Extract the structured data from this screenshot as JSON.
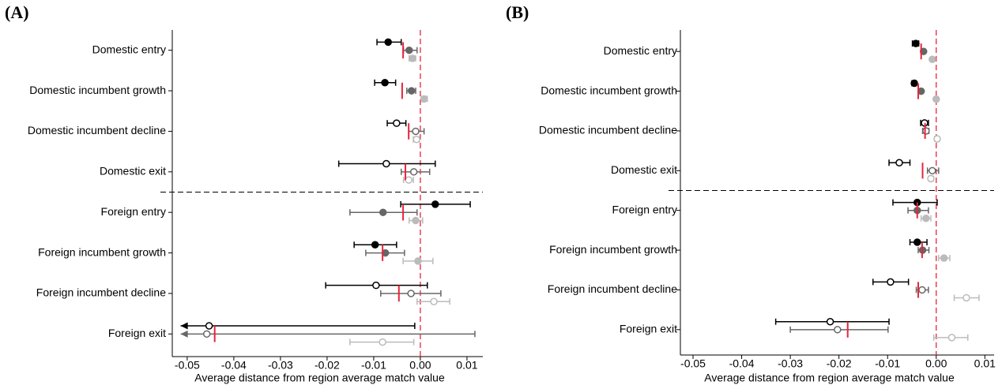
{
  "chart_data": [
    {
      "type": "dot",
      "panel_label": "(A)",
      "categories": [
        "Domestic entry",
        "Domestic incumbent growth",
        "Domestic incumbent decline",
        "Domestic exit",
        "Foreign entry",
        "Foreign incumbent growth",
        "Foreign incumbent decline",
        "Foreign exit"
      ],
      "xlabel": "Average distance from region average match value",
      "xlim": [
        -0.0532,
        0.0134
      ],
      "xticks": [
        -0.05,
        -0.04,
        -0.03,
        -0.02,
        -0.01,
        {
          "value": 0,
          "label": "0.00"
        },
        0.01
      ],
      "reference_x": 0,
      "reference_color": "#e8253a",
      "open_markers": [
        false,
        false,
        true,
        true,
        false,
        false,
        true,
        true
      ],
      "series": [
        {
          "color": "#000000",
          "values": [
            -0.0069,
            -0.0076,
            -0.0051,
            -0.0073,
            0.0032,
            -0.0097,
            -0.0095,
            -0.0453
          ],
          "lower": [
            -0.0093,
            -0.0098,
            -0.0071,
            -0.0175,
            -0.0042,
            -0.0142,
            -0.0203,
            -0.0514
          ],
          "upper": [
            -0.0041,
            -0.0053,
            -0.0031,
            0.0032,
            0.0107,
            -0.0051,
            0.0015,
            -0.0012
          ],
          "arrow_lower": [
            false,
            false,
            false,
            false,
            false,
            false,
            false,
            true
          ]
        },
        {
          "color": "#666666",
          "values": [
            -0.0024,
            -0.0019,
            -0.001,
            -0.0014,
            -0.008,
            -0.0075,
            -0.002,
            -0.0458
          ],
          "lower": [
            -0.0036,
            -0.0029,
            -0.0025,
            -0.0041,
            -0.0151,
            -0.0117,
            -0.0085,
            -0.0514
          ],
          "upper": [
            -0.0007,
            -0.001,
            0.0008,
            0.002,
            -0.0007,
            -0.0034,
            0.0044,
            0.0117
          ],
          "arrow_lower": [
            false,
            false,
            false,
            false,
            false,
            false,
            false,
            true
          ]
        },
        {
          "color": "#bbbbbb",
          "values": [
            -0.0017,
            0.0008,
            -0.0008,
            -0.0025,
            -0.001,
            -0.0005,
            0.0029,
            -0.0081
          ],
          "lower": [
            -0.0024,
            0.0002,
            -0.0015,
            -0.0036,
            -0.0024,
            -0.0037,
            -0.0007,
            -0.0151
          ],
          "upper": [
            -0.001,
            0.0015,
            -0.0002,
            -0.0015,
            0.0005,
            0.0027,
            0.0063,
            -0.0014
          ]
        }
      ],
      "reference_marks": [
        -0.0037,
        -0.0039,
        -0.0025,
        -0.0032,
        -0.0037,
        -0.0081,
        -0.0046,
        -0.0441
      ]
    },
    {
      "type": "dot",
      "panel_label": "(B)",
      "categories": [
        "Domestic entry",
        "Domestic incumbent growth",
        "Domestic incumbent decline",
        "Domestic exit",
        "Foreign entry",
        "Foreign incumbent growth",
        "Foreign incumbent decline",
        "Foreign exit"
      ],
      "xlabel": "Average distance from region average match value",
      "xlim": [
        -0.0526,
        0.0119
      ],
      "xticks": [
        -0.05,
        -0.04,
        -0.03,
        -0.02,
        -0.01,
        {
          "value": 0,
          "label": "0.00"
        },
        0.01
      ],
      "reference_x": 0,
      "reference_color": "#e8253a",
      "open_markers": [
        false,
        false,
        true,
        true,
        false,
        false,
        true,
        true
      ],
      "series": [
        {
          "color": "#000000",
          "values": [
            -0.0042,
            -0.0045,
            -0.0024,
            -0.0076,
            -0.0039,
            -0.0039,
            -0.0094,
            -0.0218
          ],
          "lower": [
            -0.0049,
            -0.005,
            -0.0032,
            -0.0097,
            -0.0089,
            -0.0054,
            -0.013,
            -0.033
          ],
          "upper": [
            -0.0036,
            -0.0041,
            -0.0016,
            -0.0054,
            0.0002,
            -0.0019,
            -0.0057,
            -0.0097
          ]
        },
        {
          "color": "#666666",
          "values": [
            -0.0026,
            -0.0031,
            -0.0021,
            -0.0008,
            -0.0039,
            -0.0028,
            -0.0029,
            -0.0203
          ],
          "lower": [
            -0.0031,
            -0.0034,
            -0.0028,
            -0.0018,
            -0.0058,
            -0.0037,
            -0.0041,
            -0.03
          ],
          "upper": [
            -0.0023,
            -0.0028,
            -0.0015,
            0.0005,
            -0.0016,
            -0.0015,
            -0.0016,
            -0.0099
          ]
        },
        {
          "color": "#bbbbbb",
          "values": [
            -0.0008,
            0,
            0.0002,
            -0.0011,
            -0.0021,
            0.0016,
            0.0062,
            0.0032
          ],
          "lower": [
            -0.0011,
            -0.0003,
            -0.0003,
            -0.0015,
            -0.0031,
            0.0005,
            0.0037,
            -0.0005
          ],
          "upper": [
            -0.0005,
            0.0003,
            0.0005,
            -0.0006,
            -0.0011,
            0.0028,
            0.0088,
            0.0065
          ]
        }
      ],
      "reference_marks": [
        -0.0031,
        -0.0037,
        -0.0023,
        -0.0028,
        -0.0039,
        -0.0029,
        -0.0037,
        -0.0182
      ]
    }
  ]
}
